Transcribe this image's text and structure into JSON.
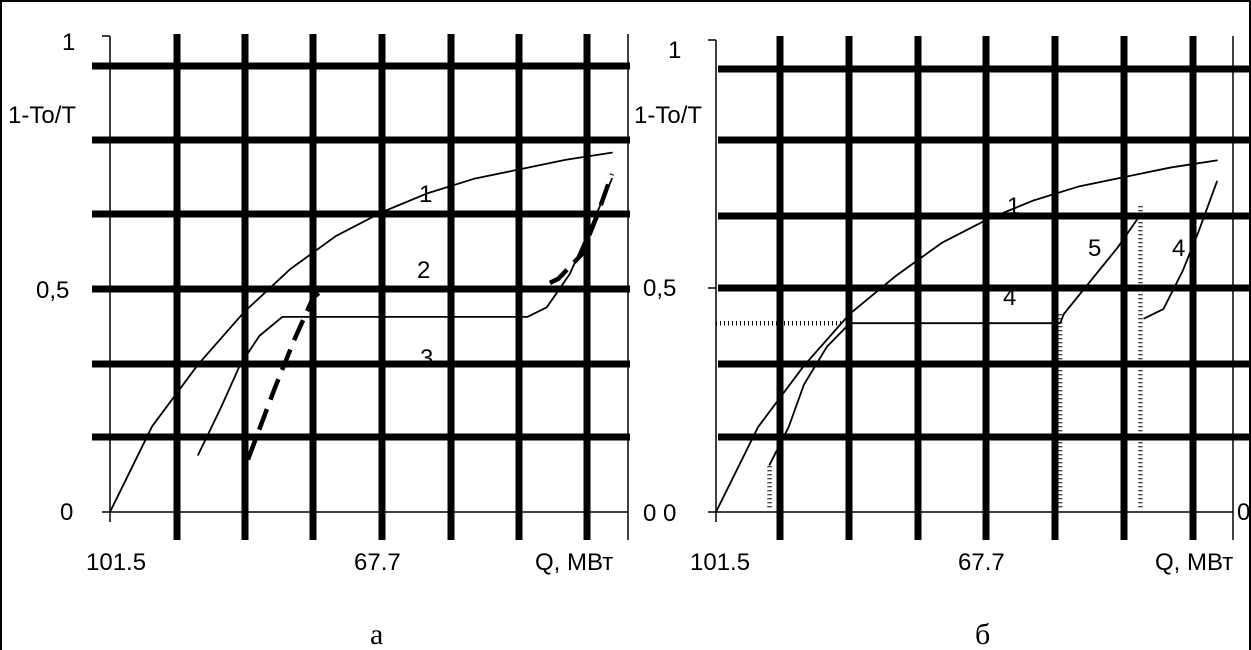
{
  "chart_data": [
    {
      "panel": "а",
      "type": "line",
      "ylabel": "1-To/T",
      "xlabel": "Q, МВт",
      "x_tick_labels": [
        "101.5",
        "67.7"
      ],
      "y_tick_labels": [
        "1",
        "0,5",
        "0"
      ],
      "ylim": [
        0,
        1
      ],
      "x_direction": "decreasing",
      "grid": true,
      "series": [
        {
          "name": "1",
          "style": "solid-thin",
          "points": [
            [
              101.5,
              0.0
            ],
            [
              96.0,
              0.18
            ],
            [
              90.0,
              0.31
            ],
            [
              84.0,
              0.42
            ],
            [
              78.0,
              0.51
            ],
            [
              72.0,
              0.58
            ],
            [
              66.0,
              0.63
            ],
            [
              60.0,
              0.67
            ],
            [
              54.0,
              0.7
            ],
            [
              48.0,
              0.72
            ],
            [
              42.0,
              0.74
            ],
            [
              36.0,
              0.755
            ]
          ]
        },
        {
          "name": "2",
          "style": "dashed-thick",
          "points": [
            [
              83.5,
              0.11
            ],
            [
              80.0,
              0.26
            ],
            [
              77.5,
              0.36
            ],
            [
              75.0,
              0.45
            ],
            [
              73.5,
              0.47
            ],
            [
              45.5,
              0.47
            ],
            [
              43.0,
              0.49
            ],
            [
              40.0,
              0.54
            ],
            [
              38.0,
              0.62
            ],
            [
              36.0,
              0.71
            ]
          ]
        },
        {
          "name": "3",
          "style": "solid-thin",
          "points": [
            [
              90.0,
              0.12
            ],
            [
              87.0,
              0.22
            ],
            [
              84.5,
              0.31
            ],
            [
              82.0,
              0.37
            ],
            [
              79.0,
              0.41
            ],
            [
              47.0,
              0.41
            ],
            [
              44.5,
              0.43
            ],
            [
              41.5,
              0.5
            ],
            [
              39.0,
              0.59
            ],
            [
              36.0,
              0.7
            ]
          ]
        }
      ],
      "labels": [
        "1",
        "2",
        "3"
      ]
    },
    {
      "panel": "б",
      "type": "line",
      "ylabel": "1-To/T",
      "xlabel": "Q, МВт",
      "x_tick_labels": [
        "101.5",
        "67.7"
      ],
      "y_tick_labels": [
        "1",
        "0,5",
        "0 0"
      ],
      "ylim": [
        0,
        1
      ],
      "x_direction": "decreasing",
      "grid": true,
      "series": [
        {
          "name": "1",
          "style": "solid-thin",
          "points": [
            [
              101.5,
              0.0
            ],
            [
              96.0,
              0.18
            ],
            [
              90.0,
              0.31
            ],
            [
              84.0,
              0.42
            ],
            [
              78.0,
              0.5
            ],
            [
              72.0,
              0.57
            ],
            [
              66.0,
              0.62
            ],
            [
              60.0,
              0.66
            ],
            [
              54.0,
              0.69
            ],
            [
              48.0,
              0.71
            ],
            [
              42.0,
              0.73
            ],
            [
              36.0,
              0.745
            ]
          ]
        },
        {
          "name": "4",
          "style": "solid-thin",
          "points": [
            [
              94.5,
              0.1
            ],
            [
              92.0,
              0.18
            ],
            [
              90.0,
              0.27
            ],
            [
              87.0,
              0.35
            ],
            [
              84.0,
              0.4
            ],
            [
              56.5,
              0.4
            ],
            [
              56.0,
              0.42
            ],
            [
              53.0,
              0.48
            ],
            [
              49.0,
              0.56
            ],
            [
              46.0,
              0.63
            ]
          ]
        },
        {
          "name": "4",
          "style": "solid-thin",
          "points": [
            [
              45.5,
              0.41
            ],
            [
              43.0,
              0.43
            ],
            [
              40.5,
              0.51
            ],
            [
              38.5,
              0.59
            ],
            [
              36.0,
              0.7
            ]
          ]
        },
        {
          "name": "dotted",
          "style": "dotted-thick",
          "points": [
            [
              101.5,
              0.4
            ],
            [
              85.0,
              0.4
            ]
          ]
        },
        {
          "name": "dotted",
          "style": "dotted-thick",
          "points": [
            [
              94.5,
              0.01
            ],
            [
              94.5,
              0.1
            ]
          ]
        },
        {
          "name": "dotted",
          "style": "dotted-thick",
          "points": [
            [
              56.5,
              0.01
            ],
            [
              56.5,
              0.42
            ]
          ]
        },
        {
          "name": "dotted",
          "style": "dotted-thick",
          "points": [
            [
              46.0,
              0.01
            ],
            [
              46.0,
              0.65
            ]
          ]
        }
      ],
      "labels": [
        "1",
        "4",
        "5",
        "4"
      ],
      "right_edge_fragment": "0"
    }
  ],
  "captions": {
    "left": "а",
    "right": "б"
  }
}
